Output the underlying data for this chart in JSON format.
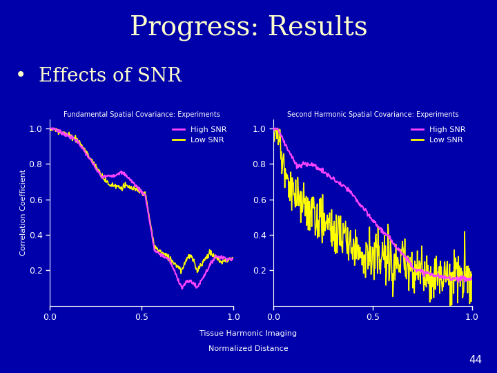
{
  "background_color": "#0000aa",
  "title": "Progress: Results",
  "title_color": "#ffffcc",
  "title_fontsize": 28,
  "bullet_text": "Effects of SNR",
  "bullet_color": "#ffffcc",
  "bullet_fontsize": 20,
  "plot1_title": "Fundamental Spatial Covariance: Experiments",
  "plot2_title": "Second Harmonic Spatial Covariance: Experiments",
  "xlabel": "Normalized Distance",
  "xlabel_center": "Tissue Harmonic Imaging",
  "ylabel": "Correlation Coefficient",
  "high_snr_color": "#ff44ff",
  "low_snr_color": "#ffff00",
  "axes_bg_color": "#0000aa",
  "axes_text_color": "#ffffff",
  "tick_color": "#ffffff",
  "spine_color": "#ffffff",
  "legend_high_snr": "High SNR",
  "legend_low_snr": "Low SNR",
  "bottom_right_text": "44",
  "xlim": [
    0,
    1
  ],
  "ylim": [
    0,
    1.05
  ],
  "yticks": [
    0.2,
    0.4,
    0.6,
    0.8,
    1.0
  ],
  "xticks": [
    0,
    0.5,
    1
  ]
}
